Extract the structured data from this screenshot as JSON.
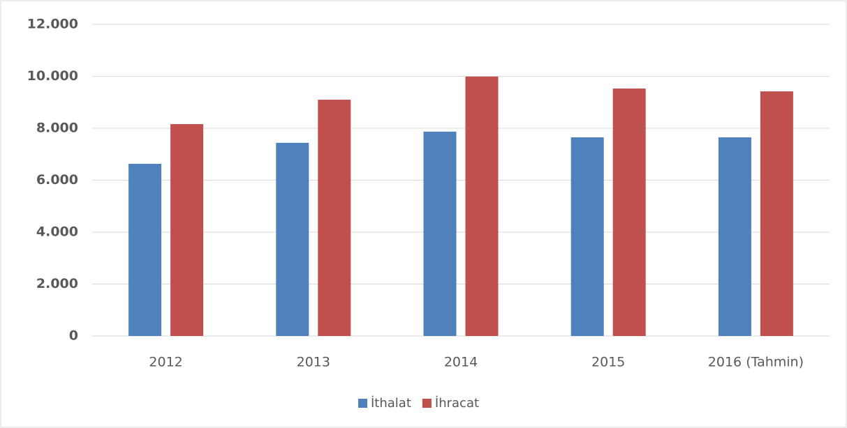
{
  "chart_data": {
    "type": "bar",
    "categories": [
      "2012",
      "2013",
      "2014",
      "2015",
      "2016 (Tahmin)"
    ],
    "series": [
      {
        "name": "İthalat",
        "color": "#4f81bd",
        "values": [
          6630,
          7440,
          7870,
          7650,
          7650
        ]
      },
      {
        "name": "İhracat",
        "color": "#c0504d",
        "values": [
          8160,
          9100,
          9990,
          9530,
          9420
        ]
      }
    ],
    "ylim": [
      0,
      12000
    ],
    "yticks": [
      0,
      {
        "value": 2000,
        "label": "2.000"
      },
      {
        "value": 4000,
        "label": "4.000"
      },
      {
        "value": 6000,
        "label": "6.000"
      },
      {
        "value": 8000,
        "label": "8.000"
      },
      {
        "value": 10000,
        "label": "10.000"
      },
      {
        "value": 12000,
        "label": "12.000"
      }
    ],
    "grid": true,
    "legend": "bottom"
  }
}
